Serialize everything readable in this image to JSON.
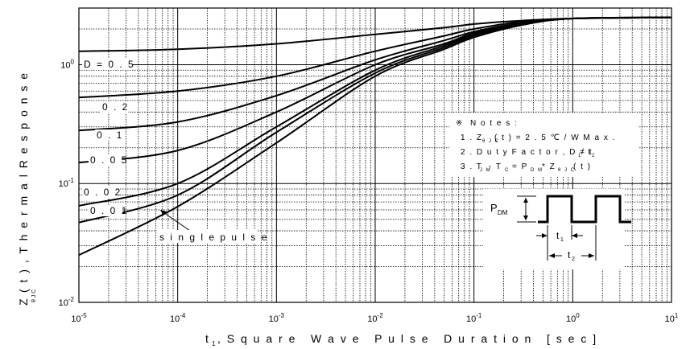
{
  "chart_data": {
    "type": "line",
    "title": "",
    "xlabel": "t1, Square Wave Pulse Duration [sec]",
    "ylabel": "ZθJC(t), Thermal Response",
    "xscale": "log",
    "yscale": "log",
    "xlim": [
      1e-05,
      10
    ],
    "ylim": [
      0.01,
      3
    ],
    "grid": true,
    "x_tick_labels": [
      "10-5",
      "10-4",
      "10-3",
      "10-2",
      "10-1",
      "100",
      "101"
    ],
    "y_tick_labels": [
      "10-2",
      "10-1",
      "100"
    ],
    "series": [
      {
        "name": "D = 0.5",
        "x": [
          1e-05,
          0.0001,
          0.001,
          0.01,
          0.05,
          0.1,
          0.3,
          1,
          10
        ],
        "y": [
          1.3,
          1.35,
          1.5,
          1.8,
          2.05,
          2.2,
          2.35,
          2.45,
          2.5
        ]
      },
      {
        "name": "0.2",
        "x": [
          1e-05,
          0.0001,
          0.001,
          0.01,
          0.05,
          0.1,
          0.3,
          1,
          10
        ],
        "y": [
          0.53,
          0.6,
          0.8,
          1.3,
          1.75,
          2.0,
          2.3,
          2.45,
          2.5
        ]
      },
      {
        "name": "0.1",
        "x": [
          1e-05,
          0.0001,
          0.001,
          0.01,
          0.05,
          0.1,
          0.3,
          1,
          10
        ],
        "y": [
          0.28,
          0.33,
          0.55,
          1.1,
          1.6,
          1.9,
          2.25,
          2.45,
          2.5
        ]
      },
      {
        "name": "0.05",
        "x": [
          1e-05,
          0.0001,
          0.001,
          0.01,
          0.05,
          0.1,
          0.3,
          1,
          10
        ],
        "y": [
          0.15,
          0.19,
          0.4,
          1.0,
          1.5,
          1.85,
          2.25,
          2.45,
          2.5
        ]
      },
      {
        "name": "0.02",
        "x": [
          1e-05,
          0.0001,
          0.001,
          0.01,
          0.05,
          0.1,
          0.3,
          1,
          10
        ],
        "y": [
          0.065,
          0.1,
          0.3,
          0.9,
          1.45,
          1.8,
          2.2,
          2.45,
          2.5
        ]
      },
      {
        "name": "0.01",
        "x": [
          1e-05,
          0.0001,
          0.001,
          0.01,
          0.05,
          0.1,
          0.3,
          1,
          10
        ],
        "y": [
          0.047,
          0.08,
          0.27,
          0.85,
          1.4,
          1.75,
          2.2,
          2.45,
          2.5
        ]
      },
      {
        "name": "single pulse",
        "x": [
          1e-05,
          0.0001,
          0.001,
          0.01,
          0.05,
          0.1,
          0.3,
          1,
          10
        ],
        "y": [
          0.025,
          0.064,
          0.22,
          0.8,
          1.35,
          1.7,
          2.15,
          2.45,
          2.5
        ]
      }
    ],
    "annotations": {
      "notes_marker": "※",
      "notes_title": "Notes :",
      "note1": "1. ZθJC(t) = 2.5 ℃/W Max.",
      "note2": "2. Duty Factor, D=t1/t2",
      "note3": "3. TJM - TC = PDM * ZθJC(t)",
      "pdm_label": "PDM",
      "t1_label": "t1",
      "t2_label": "t2"
    }
  }
}
